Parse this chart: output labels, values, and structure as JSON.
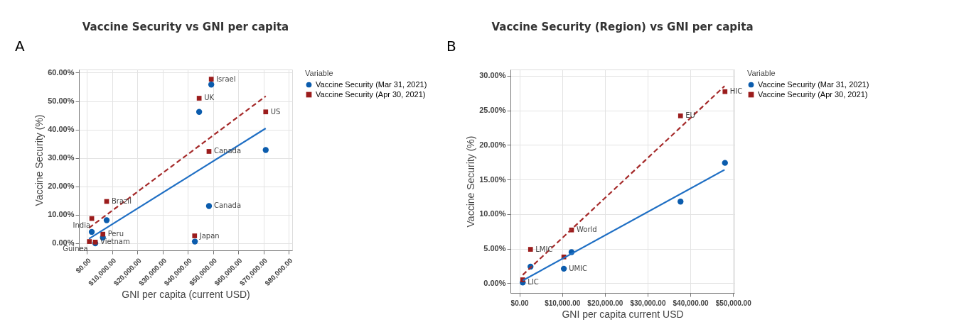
{
  "chart_data": [
    {
      "type": "scatter",
      "title": "Vaccine Security vs GNI per capita",
      "xlabel": "GNI per capita (current USD)",
      "ylabel": "Vaccine Security (%)",
      "legend_title": "Variable",
      "legend": "right",
      "grid": true,
      "xlim": [
        -3200,
        81400
      ],
      "ylim": [
        -2.5,
        61.1
      ],
      "xticks": [
        {
          "value": 0,
          "label": "$0.00"
        },
        {
          "value": 10000,
          "label": "$10,000.00"
        },
        {
          "value": 20000,
          "label": "$20,000.00"
        },
        {
          "value": 30000,
          "label": "$30,000.00"
        },
        {
          "value": 40000,
          "label": "$40,000.00"
        },
        {
          "value": 50000,
          "label": "$50,000.00"
        },
        {
          "value": 60000,
          "label": "$60,000.00"
        },
        {
          "value": 70000,
          "label": "$70,000.00"
        },
        {
          "value": 80000,
          "label": "$80,000.00"
        }
      ],
      "yticks": [
        {
          "value": 0,
          "label": "0.00%"
        },
        {
          "value": 10,
          "label": "10.00%"
        },
        {
          "value": 20,
          "label": "20.00%"
        },
        {
          "value": 30,
          "label": "30.00%"
        },
        {
          "value": 40,
          "label": "40.00%"
        },
        {
          "value": 50,
          "label": "50.00%"
        },
        {
          "value": 60,
          "label": "60.00%"
        }
      ],
      "series": [
        {
          "type": "scatter",
          "name": "Vaccine Security (Mar 31, 2021)",
          "color": "#0b5cad",
          "marker": "circle",
          "x": [
            1900,
            3300,
            6300,
            7800,
            42800,
            44500,
            48400,
            49300,
            70900
          ],
          "values": [
            4.0,
            0.0,
            2.0,
            8.1,
            0.6,
            46.2,
            13.1,
            55.8,
            32.8
          ]
        },
        {
          "type": "scatter",
          "name": "Vaccine Security (Apr 30, 2021)",
          "color": "#9b1c1c",
          "marker": "square",
          "x": [
            960,
            1900,
            3300,
            6300,
            7800,
            42700,
            44500,
            48400,
            49300,
            70900
          ],
          "values": [
            0.6,
            8.7,
            0.4,
            3.2,
            14.7,
            2.6,
            51.0,
            32.3,
            57.7,
            46.2
          ]
        },
        {
          "type": "line",
          "color": "#1f6fc4",
          "line_style": "solid",
          "x": [
            800,
            70900
          ],
          "values": [
            1.6,
            40.4
          ]
        },
        {
          "type": "line",
          "color": "#a52a2a",
          "line_style": "dashed",
          "x": [
            800,
            70900
          ],
          "values": [
            5.4,
            51.7
          ]
        }
      ],
      "annotations": [
        "A",
        {
          "text": "Guinea",
          "x": 960,
          "y": 0.6
        },
        {
          "text": "India",
          "x": 1900,
          "y": 8.7
        },
        {
          "text": "Vietnam",
          "x": 3300,
          "y": 0.4
        },
        {
          "text": "Peru",
          "x": 6300,
          "y": 3.2
        },
        {
          "text": "Brazil",
          "x": 7800,
          "y": 14.7
        },
        {
          "text": "Japan",
          "x": 42700,
          "y": 2.6
        },
        {
          "text": "UK",
          "x": 44500,
          "y": 51.0
        },
        {
          "text": "Canada",
          "x": 48400,
          "y": 32.3
        },
        {
          "text": "Canada",
          "x": 48400,
          "y": 13.1
        },
        {
          "text": "Israel",
          "x": 49300,
          "y": 57.7
        },
        {
          "text": "US",
          "x": 70900,
          "y": 46.2
        }
      ]
    },
    {
      "type": "scatter",
      "title": "Vaccine Security (Region) vs GNI per capita",
      "xlabel": "GNI per capita current USD",
      "ylabel": "Vaccine Security (%)",
      "legend_title": "Variable",
      "legend": "right",
      "grid": true,
      "xlim": [
        -2100,
        50300
      ],
      "ylim": [
        -1.4,
        30.9
      ],
      "xticks": [
        {
          "value": 0,
          "label": "$0.00"
        },
        {
          "value": 10000,
          "label": "$10,000.00"
        },
        {
          "value": 20000,
          "label": "$20,000.00"
        },
        {
          "value": 30000,
          "label": "$30,000.00"
        },
        {
          "value": 40000,
          "label": "$40,000.00"
        },
        {
          "value": 50000,
          "label": "$50,000.00"
        }
      ],
      "yticks": [
        {
          "value": 0,
          "label": "0.00%"
        },
        {
          "value": 5,
          "label": "5.00%"
        },
        {
          "value": 10,
          "label": "10.00%"
        },
        {
          "value": 15,
          "label": "15.00%"
        },
        {
          "value": 20,
          "label": "20.00%"
        },
        {
          "value": 25,
          "label": "25.00%"
        },
        {
          "value": 30,
          "label": "30.00%"
        }
      ],
      "series": [
        {
          "type": "scatter",
          "name": "Vaccine Security (Mar 31, 2021)",
          "color": "#0b5cad",
          "marker": "circle",
          "x": [
            780,
            2600,
            10400,
            12200,
            37700,
            48100
          ],
          "values": [
            0.1,
            2.4,
            2.1,
            4.5,
            11.8,
            17.4
          ]
        },
        {
          "type": "scatter",
          "name": "Vaccine Security (Apr 30, 2021)",
          "color": "#9b1c1c",
          "marker": "square",
          "x": [
            780,
            2600,
            10400,
            12200,
            37700,
            48100
          ],
          "values": [
            0.5,
            4.9,
            3.8,
            7.7,
            24.2,
            27.7
          ]
        },
        {
          "type": "line",
          "color": "#1f6fc4",
          "line_style": "solid",
          "x": [
            780,
            48000
          ],
          "values": [
            0.4,
            16.4
          ]
        },
        {
          "type": "line",
          "color": "#a52a2a",
          "line_style": "dashed",
          "x": [
            780,
            48000
          ],
          "values": [
            1.2,
            28.5
          ]
        }
      ],
      "annotations": [
        "B",
        {
          "text": "LIC",
          "x": 780,
          "y": 0.1
        },
        {
          "text": "LMIC",
          "x": 2600,
          "y": 4.9
        },
        {
          "text": "UMIC",
          "x": 10400,
          "y": 2.1
        },
        {
          "text": "World",
          "x": 12200,
          "y": 7.7
        },
        {
          "text": "EU",
          "x": 37700,
          "y": 24.2
        },
        {
          "text": "HIC",
          "x": 48100,
          "y": 27.7
        }
      ]
    }
  ]
}
